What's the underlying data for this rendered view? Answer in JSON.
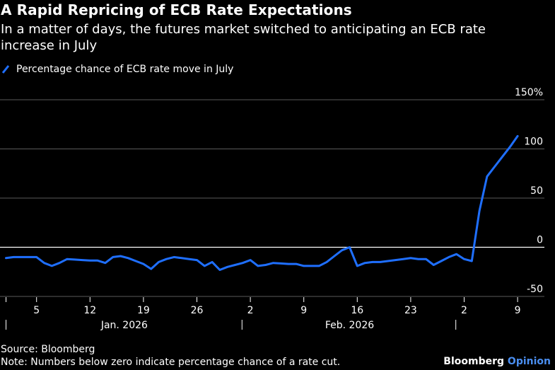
{
  "title": "A Rapid Repricing of ECB Rate Expectations",
  "subtitle": "In a matter of days, the futures market switched to anticipating an ECB rate increase in July",
  "legend": {
    "label": "Percentage chance of ECB rate move in July"
  },
  "footer": {
    "source": "Source: Bloomberg",
    "note": "Note: Numbers below zero indicate percentage chance of a rate cut."
  },
  "brand": {
    "name": "Bloomberg",
    "suffix": "Opinion"
  },
  "colors": {
    "line": "#1f6fff",
    "grid": "#5a5a5a",
    "zero": "#ffffff",
    "background": "#000000"
  },
  "chart_data": {
    "type": "line",
    "ylim": [
      -50,
      150
    ],
    "y_ticks": [
      {
        "value": 150,
        "label": "150%"
      },
      {
        "value": 100,
        "label": "100"
      },
      {
        "value": 50,
        "label": "50"
      },
      {
        "value": 0,
        "label": "0"
      },
      {
        "value": -50,
        "label": "-50"
      }
    ],
    "xlim": [
      0,
      68
    ],
    "x_ticks": [
      {
        "day": 0,
        "label": ""
      },
      {
        "day": 4,
        "label": "5"
      },
      {
        "day": 11,
        "label": "12"
      },
      {
        "day": 18,
        "label": "19"
      },
      {
        "day": 25,
        "label": "26"
      },
      {
        "day": 32,
        "label": "2"
      },
      {
        "day": 39,
        "label": "9"
      },
      {
        "day": 46,
        "label": "16"
      },
      {
        "day": 53,
        "label": "23"
      },
      {
        "day": 60,
        "label": "2"
      },
      {
        "day": 67,
        "label": "9"
      }
    ],
    "period_labels": [
      {
        "label": "Jan. 2026",
        "start_day": 0,
        "end_day": 31
      },
      {
        "label": "Feb. 2026",
        "start_day": 31,
        "end_day": 59
      }
    ],
    "series": [
      {
        "name": "Percentage chance of ECB rate move in July",
        "points": [
          [
            0,
            -11
          ],
          [
            1,
            -10
          ],
          [
            2,
            -10
          ],
          [
            3,
            -10
          ],
          [
            4,
            -10
          ],
          [
            5,
            -16
          ],
          [
            6,
            -19
          ],
          [
            7,
            -16
          ],
          [
            8,
            -12
          ],
          [
            9,
            -12.5
          ],
          [
            10,
            -13
          ],
          [
            11,
            -13.5
          ],
          [
            12,
            -13.5
          ],
          [
            13,
            -16
          ],
          [
            14,
            -10
          ],
          [
            15,
            -9
          ],
          [
            16,
            -11
          ],
          [
            17,
            -14
          ],
          [
            18,
            -17
          ],
          [
            19,
            -22
          ],
          [
            20,
            -15
          ],
          [
            21,
            -12
          ],
          [
            22,
            -10
          ],
          [
            23,
            -11
          ],
          [
            24,
            -12
          ],
          [
            25,
            -13
          ],
          [
            26,
            -19
          ],
          [
            27,
            -15
          ],
          [
            28,
            -23
          ],
          [
            29,
            -20
          ],
          [
            30,
            -18
          ],
          [
            31,
            -16
          ],
          [
            32,
            -13
          ],
          [
            33,
            -19
          ],
          [
            34,
            -18
          ],
          [
            35,
            -16
          ],
          [
            36,
            -16.5
          ],
          [
            37,
            -17
          ],
          [
            38,
            -17
          ],
          [
            39,
            -19
          ],
          [
            40,
            -19
          ],
          [
            41,
            -19
          ],
          [
            42,
            -15
          ],
          [
            43,
            -9
          ],
          [
            44,
            -3
          ],
          [
            45,
            0
          ],
          [
            46,
            -19
          ],
          [
            47,
            -16
          ],
          [
            48,
            -15
          ],
          [
            49,
            -15
          ],
          [
            50,
            -14
          ],
          [
            51,
            -13
          ],
          [
            52,
            -12
          ],
          [
            53,
            -11
          ],
          [
            54,
            -12
          ],
          [
            55,
            -12
          ],
          [
            56,
            -18
          ],
          [
            57,
            -14
          ],
          [
            58,
            -10
          ],
          [
            59,
            -7
          ],
          [
            60,
            -12
          ],
          [
            61,
            -14
          ],
          [
            62,
            37
          ],
          [
            63,
            72
          ],
          [
            64,
            82
          ],
          [
            65,
            92
          ],
          [
            66,
            102
          ],
          [
            67,
            113
          ]
        ]
      }
    ]
  }
}
